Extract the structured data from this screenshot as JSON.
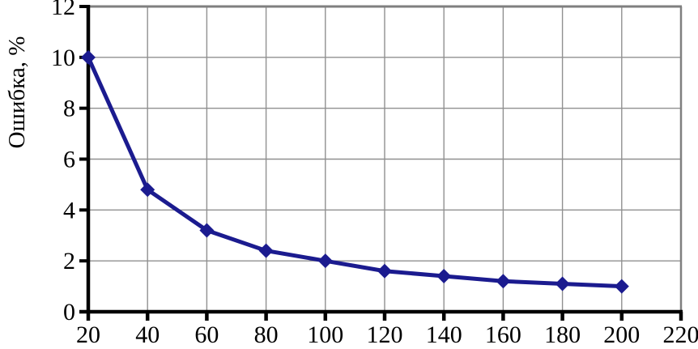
{
  "chart_data": {
    "type": "line",
    "title": "",
    "xlabel": "",
    "ylabel": "Ошибка, %",
    "x": [
      20,
      40,
      60,
      80,
      100,
      120,
      140,
      160,
      180,
      200
    ],
    "series": [
      {
        "name": "",
        "values": [
          10,
          4.8,
          3.2,
          2.4,
          2.0,
          1.6,
          1.4,
          1.2,
          1.1,
          1.0
        ]
      }
    ],
    "xlim": [
      20,
      220
    ],
    "ylim": [
      0,
      12
    ],
    "x_ticks": [
      20,
      40,
      60,
      80,
      100,
      120,
      140,
      160,
      180,
      200,
      220
    ],
    "y_ticks": [
      0,
      2,
      4,
      6,
      8,
      10,
      12
    ],
    "grid": true,
    "legend": "none",
    "marker": "diamond",
    "colors": {
      "line": "#1b1b8f",
      "marker": "#1b1b8f",
      "grid": "#909090",
      "border": "#7f7f7f",
      "axis": "#000000",
      "text": "#000000",
      "background": "#ffffff"
    }
  }
}
